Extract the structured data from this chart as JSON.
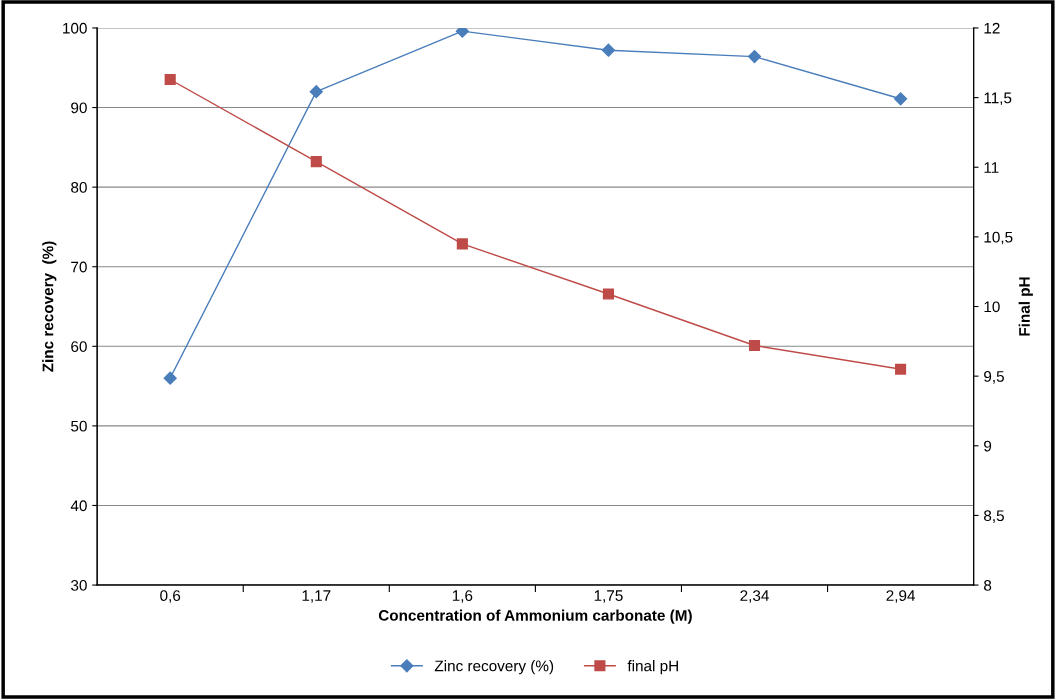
{
  "chart_data": {
    "type": "line",
    "xlabel": "Concentration of Ammonium carbonate (M)",
    "ylabel": "Zinc recovery  (%)",
    "y2label": "Final pH",
    "categories": [
      "0,6",
      "1,17",
      "1,6",
      "1,75",
      "2,34",
      "2,94"
    ],
    "series": [
      {
        "name": "Zinc recovery (%)",
        "color": "#4a7ebb",
        "marker": "diamond",
        "values": [
          56,
          92,
          99.6,
          97.2,
          96.4,
          91.1
        ]
      },
      {
        "name": "final pH",
        "color": "#be4b48",
        "marker": "square",
        "axis": "y2",
        "values": [
          11.63,
          11.04,
          10.45,
          10.09,
          9.72,
          9.55
        ]
      }
    ],
    "ylim": [
      30,
      100
    ],
    "yticks": [
      30,
      40,
      50,
      60,
      70,
      80,
      90,
      100
    ],
    "y2lim": [
      8,
      12
    ],
    "y2ticks": [
      8,
      {
        "value": 8.5,
        "label": "8,5"
      },
      9,
      {
        "value": 9.5,
        "label": "9,5"
      },
      10,
      {
        "value": 10.5,
        "label": "10,5"
      },
      11,
      {
        "value": 11.5,
        "label": "11,5"
      },
      12
    ],
    "grid": "y",
    "legend": "bottom",
    "line_style": "solid"
  }
}
